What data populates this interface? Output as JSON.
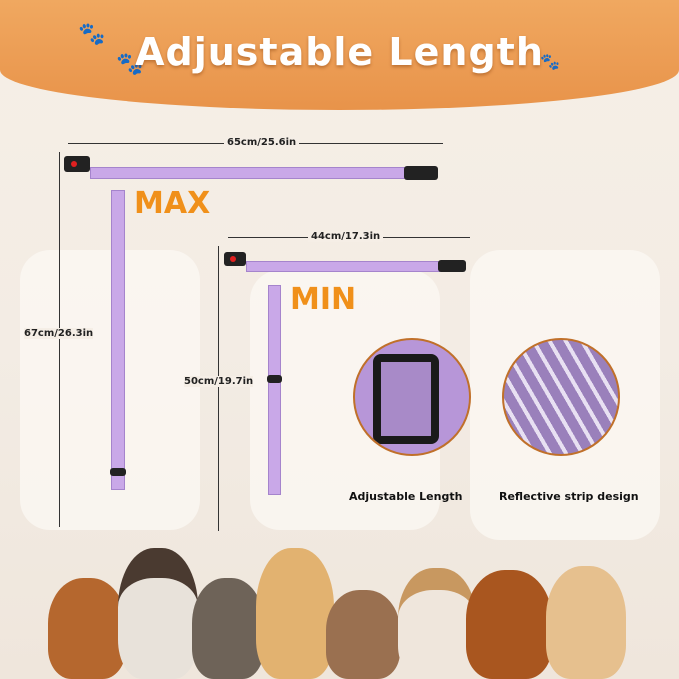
{
  "title": "Adjustable Length",
  "labels": {
    "max": "MAX",
    "min": "MIN"
  },
  "dimensions": {
    "max_width": "65cm/25.6in",
    "max_height": "67cm/26.3in",
    "min_width": "44cm/17.3in",
    "min_height": "50cm/19.7in"
  },
  "features": [
    {
      "caption": "Adjustable Length"
    },
    {
      "caption": "Reflective strip design"
    }
  ],
  "colors": {
    "banner": "#e8934a",
    "strap": "#c9a8e8",
    "label": "#f0901a"
  }
}
